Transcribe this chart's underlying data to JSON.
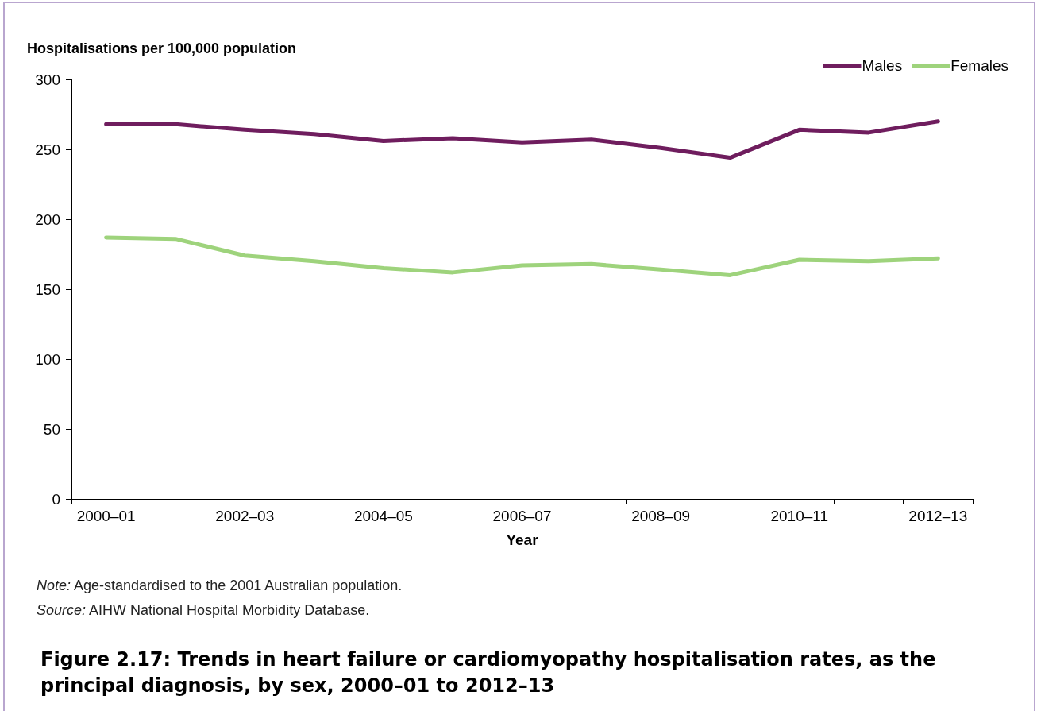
{
  "chart_data": {
    "type": "line",
    "title": "Figure 2.17: Trends in heart failure or cardiomyopathy hospitalisation rates, as the principal diagnosis, by sex, 2000–01 to 2012–13",
    "xlabel": "Year",
    "ylabel": "Hospitalisations per 100,000 population",
    "categories": [
      "2000–01",
      null,
      "2002–03",
      null,
      "2004–05",
      null,
      "2006–07",
      null,
      "2008–09",
      null,
      "2010–11",
      null,
      "2012–13"
    ],
    "series": [
      {
        "name": "Males",
        "color": "#6f1d5e",
        "values": [
          268,
          268,
          264,
          261,
          256,
          258,
          255,
          257,
          251,
          244,
          264,
          262,
          270
        ]
      },
      {
        "name": "Females",
        "color": "#9ed37c",
        "values": [
          187,
          186,
          174,
          170,
          165,
          162,
          167,
          168,
          164,
          160,
          171,
          170,
          172
        ]
      }
    ],
    "ylim": [
      0,
      300
    ],
    "yticks": [
      0,
      50,
      100,
      150,
      200,
      250,
      300
    ],
    "grid": false,
    "legend": "top right",
    "marker": "none",
    "line_style": "solid",
    "annotations": [
      "Note: Age-standardised to the 2001 Australian population.",
      "Source: AIHW National Hospital Morbidity Database."
    ]
  }
}
